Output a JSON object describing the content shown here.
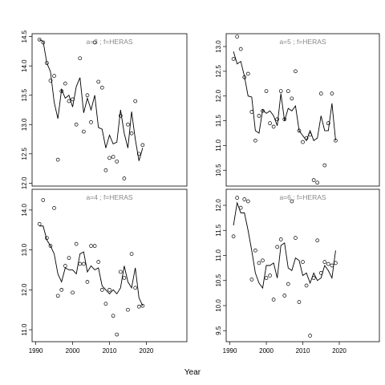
{
  "xlabel": "Year",
  "chart_data": [
    {
      "type": "scatter",
      "title": "a=3 ; f=HERAS",
      "x": [
        1991,
        1992,
        1993,
        1994,
        1995,
        1996,
        1997,
        1998,
        1999,
        2000,
        2001,
        2002,
        2003,
        2004,
        2005,
        2006,
        2007,
        2008,
        2009,
        2010,
        2011,
        2012,
        2013,
        2014,
        2015,
        2016,
        2017,
        2018,
        2019
      ],
      "values": [
        14.45,
        14.4,
        14.05,
        13.75,
        13.83,
        12.4,
        13.57,
        13.7,
        13.4,
        13.43,
        13.0,
        14.13,
        12.88,
        13.5,
        13.04,
        14.4,
        13.73,
        13.63,
        12.22,
        12.43,
        12.45,
        12.37,
        13.15,
        12.08,
        13.0,
        12.85,
        13.4,
        12.5,
        12.65
      ],
      "line_values": [
        14.45,
        14.42,
        14.05,
        13.9,
        13.38,
        13.1,
        13.6,
        13.45,
        13.5,
        13.3,
        13.65,
        13.8,
        13.2,
        13.45,
        13.25,
        13.5,
        12.95,
        12.92,
        12.6,
        12.82,
        12.67,
        12.7,
        13.25,
        12.85,
        12.6,
        13.22,
        12.75,
        12.38,
        12.6
      ],
      "xlim": [
        1989,
        2031
      ],
      "ylim": [
        11.95,
        14.55
      ],
      "yticks": [
        {
          "value": 12,
          "label": "12.0"
        },
        12.5,
        {
          "value": 13,
          "label": "13.0"
        },
        13.5,
        {
          "value": 14,
          "label": "14.0"
        },
        14.5
      ]
    },
    {
      "type": "scatter",
      "title": "a=5 ; f=HERAS",
      "x": [
        1991,
        1992,
        1993,
        1994,
        1995,
        1996,
        1997,
        1998,
        1999,
        2000,
        2001,
        2002,
        2003,
        2004,
        2005,
        2006,
        2007,
        2008,
        2009,
        2010,
        2011,
        2012,
        2013,
        2014,
        2015,
        2016,
        2017,
        2018,
        2019
      ],
      "values": [
        12.75,
        13.2,
        12.95,
        12.38,
        12.45,
        11.68,
        11.1,
        11.6,
        11.7,
        12.1,
        11.45,
        11.38,
        11.53,
        12.1,
        11.53,
        12.1,
        11.95,
        12.5,
        11.3,
        11.07,
        11.15,
        11.22,
        10.3,
        10.25,
        12.05,
        10.6,
        11.45,
        12.05,
        11.1
      ],
      "line_values": [
        12.9,
        12.65,
        12.7,
        12.4,
        12.0,
        11.98,
        11.3,
        11.25,
        11.72,
        11.65,
        11.7,
        11.6,
        11.4,
        12.05,
        11.5,
        11.75,
        11.7,
        11.8,
        11.3,
        11.2,
        11.1,
        11.3,
        11.1,
        11.15,
        11.6,
        11.3,
        11.3,
        11.85,
        11.1
      ],
      "xlim": [
        1989,
        2031
      ],
      "ylim": [
        10.18,
        13.26
      ],
      "yticks": [
        10.5,
        {
          "value": 11,
          "label": "11.0"
        },
        11.5,
        {
          "value": 12,
          "label": "12.0"
        },
        12.5,
        {
          "value": 13,
          "label": "13.0"
        }
      ]
    },
    {
      "type": "scatter",
      "title": "a=4 ; f=HERAS",
      "x": [
        1991,
        1992,
        1993,
        1994,
        1995,
        1996,
        1997,
        1998,
        1999,
        2000,
        2001,
        2002,
        2003,
        2004,
        2005,
        2006,
        2007,
        2008,
        2009,
        2010,
        2011,
        2012,
        2013,
        2014,
        2015,
        2016,
        2017,
        2018,
        2019
      ],
      "values": [
        13.65,
        14.25,
        13.3,
        13.1,
        14.05,
        11.85,
        12.0,
        12.6,
        12.8,
        11.93,
        13.15,
        12.65,
        12.65,
        12.2,
        13.1,
        13.1,
        12.7,
        12.0,
        11.65,
        12.0,
        11.35,
        10.88,
        12.45,
        12.3,
        11.5,
        12.9,
        12.05,
        11.58,
        11.6
      ],
      "line_values": [
        13.6,
        13.6,
        13.25,
        13.1,
        12.9,
        12.4,
        12.2,
        12.55,
        12.5,
        12.5,
        12.4,
        12.9,
        12.95,
        12.45,
        12.6,
        12.5,
        12.55,
        12.1,
        12.0,
        11.9,
        12.0,
        11.9,
        12.05,
        12.6,
        12.2,
        12.05,
        12.55,
        11.8,
        11.6
      ],
      "xlim": [
        1989,
        2031
      ],
      "ylim": [
        10.7,
        14.52
      ],
      "xticks": [
        1990,
        2000,
        2010,
        2020
      ],
      "yticks": [
        {
          "value": 11,
          "label": "11.0"
        },
        {
          "value": 12,
          "label": "12.0"
        },
        {
          "value": 13,
          "label": "13.0"
        },
        {
          "value": 14,
          "label": "14.0"
        }
      ]
    },
    {
      "type": "scatter",
      "title": "a=6 ; f=HERAS",
      "x": [
        1991,
        1992,
        1993,
        1994,
        1995,
        1996,
        1997,
        1998,
        1999,
        2000,
        2001,
        2002,
        2003,
        2004,
        2005,
        2006,
        2007,
        2008,
        2009,
        2010,
        2011,
        2012,
        2013,
        2014,
        2015,
        2016,
        2017,
        2018,
        2019
      ],
      "values": [
        11.38,
        12.15,
        11.95,
        12.12,
        12.08,
        10.52,
        11.1,
        10.85,
        10.9,
        10.55,
        10.6,
        10.12,
        11.17,
        11.32,
        10.2,
        10.43,
        12.08,
        11.35,
        10.07,
        10.87,
        10.4,
        9.4,
        10.55,
        11.3,
        10.65,
        10.87,
        10.83,
        10.8,
        10.85
      ],
      "line_values": [
        11.6,
        12.05,
        11.85,
        11.85,
        11.5,
        11.1,
        10.65,
        10.45,
        10.35,
        10.8,
        10.8,
        10.85,
        10.55,
        11.2,
        11.25,
        10.75,
        10.7,
        10.95,
        10.9,
        10.6,
        10.65,
        10.45,
        10.65,
        10.5,
        10.55,
        10.8,
        10.7,
        10.55,
        11.1
      ],
      "xlim": [
        1989,
        2031
      ],
      "ylim": [
        9.28,
        12.32
      ],
      "xticks": [
        1990,
        2000,
        2010,
        2020
      ],
      "yticks": [
        9.5,
        {
          "value": 10,
          "label": "10.0"
        },
        10.5,
        {
          "value": 11,
          "label": "11.0"
        },
        11.5,
        {
          "value": 12,
          "label": "12.0"
        }
      ]
    }
  ]
}
